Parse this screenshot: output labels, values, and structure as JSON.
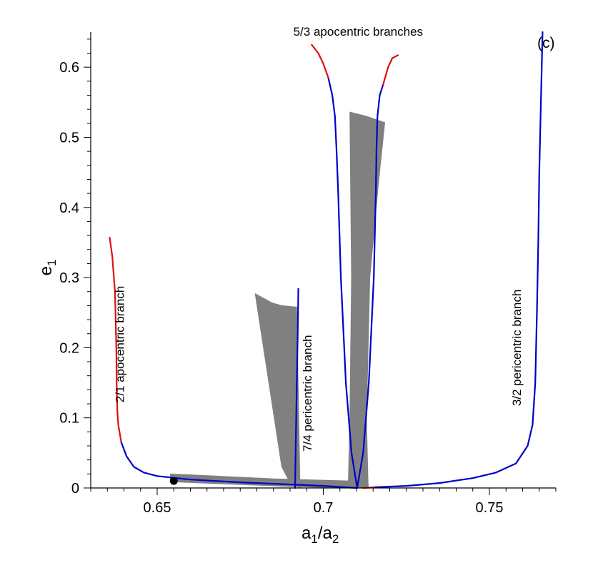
{
  "chart_data": {
    "type": "line",
    "xlabel_main": "a",
    "xlabel_sub1": "1",
    "xlabel_slash": "/a",
    "xlabel_sub2": "2",
    "ylabel_main": "e",
    "ylabel_sub": "1",
    "panel_label": "(c)",
    "xlim": [
      0.63,
      0.77
    ],
    "ylim": [
      0,
      0.65
    ],
    "x_ticks": [
      {
        "value": 0.65,
        "label": "0.65"
      },
      {
        "value": 0.7,
        "label": "0.7"
      },
      {
        "value": 0.75,
        "label": "0.75"
      }
    ],
    "y_ticks": [
      {
        "value": 0,
        "label": "0"
      },
      {
        "value": 0.1,
        "label": "0.1"
      },
      {
        "value": 0.2,
        "label": "0.2"
      },
      {
        "value": 0.3,
        "label": "0.3"
      },
      {
        "value": 0.4,
        "label": "0.4"
      },
      {
        "value": 0.5,
        "label": "0.5"
      },
      {
        "value": 0.6,
        "label": "0.6"
      }
    ],
    "colors": {
      "stable": "#0000cc",
      "unstable": "#dd1111",
      "region": "#808080",
      "point": "#000000"
    },
    "regions": [
      {
        "name": "low-e region",
        "points": [
          [
            0.654,
            0.02
          ],
          [
            0.685,
            0.013
          ],
          [
            0.7085,
            0.01
          ],
          [
            0.7135,
            0.006
          ],
          [
            0.7135,
            0.0
          ],
          [
            0.708,
            0.0
          ],
          [
            0.69,
            0.002
          ],
          [
            0.654,
            0.009
          ]
        ]
      },
      {
        "name": "7/4 region",
        "points": [
          [
            0.6795,
            0.277
          ],
          [
            0.6845,
            0.264
          ],
          [
            0.6875,
            0.26
          ],
          [
            0.692,
            0.258
          ],
          [
            0.693,
            0.0
          ],
          [
            0.6895,
            0.012
          ],
          [
            0.6875,
            0.03
          ]
        ]
      },
      {
        "name": "5/3 region",
        "points": [
          [
            0.708,
            0.536
          ],
          [
            0.713,
            0.53
          ],
          [
            0.7185,
            0.521
          ],
          [
            0.7165,
            0.43
          ],
          [
            0.714,
            0.3
          ],
          [
            0.713,
            0.1
          ],
          [
            0.7135,
            0.0
          ],
          [
            0.7075,
            0.0
          ],
          [
            0.708,
            0.1
          ],
          [
            0.7085,
            0.3
          ]
        ]
      }
    ],
    "curves": [
      {
        "name": "2/1 apocentric branch",
        "label": "2/1 apocentric branch",
        "segments": [
          {
            "color": "unstable",
            "points": [
              [
                0.6357,
                0.357
              ],
              [
                0.6365,
                0.33
              ],
              [
                0.6373,
                0.28
              ],
              [
                0.6375,
                0.24
              ],
              [
                0.6377,
                0.2
              ],
              [
                0.6378,
                0.15
              ],
              [
                0.638,
                0.11
              ],
              [
                0.6383,
                0.09
              ],
              [
                0.6392,
                0.065
              ]
            ]
          },
          {
            "color": "stable",
            "points": [
              [
                0.6392,
                0.065
              ],
              [
                0.6408,
                0.045
              ],
              [
                0.643,
                0.03
              ],
              [
                0.646,
                0.022
              ],
              [
                0.65,
                0.017
              ],
              [
                0.66,
                0.012
              ],
              [
                0.675,
                0.008
              ],
              [
                0.69,
                0.005
              ],
              [
                0.7,
                0.003
              ],
              [
                0.71,
                0.0
              ]
            ]
          }
        ]
      },
      {
        "name": "7/4 pericentric branch",
        "label": "7/4 pericentric branch",
        "segments": [
          {
            "color": "stable",
            "points": [
              [
                0.6915,
                0.0
              ],
              [
                0.6917,
                0.06
              ],
              [
                0.692,
                0.14
              ],
              [
                0.6923,
                0.22
              ],
              [
                0.6925,
                0.284
              ]
            ]
          }
        ]
      },
      {
        "name": "5/3 apocentric left",
        "label": "",
        "segments": [
          {
            "color": "stable",
            "points": [
              [
                0.7102,
                0.0
              ],
              [
                0.7085,
                0.05
              ],
              [
                0.7068,
                0.15
              ],
              [
                0.7053,
                0.3
              ],
              [
                0.7045,
                0.42
              ],
              [
                0.704,
                0.48
              ],
              [
                0.7035,
                0.53
              ],
              [
                0.7027,
                0.56
              ],
              [
                0.7015,
                0.585
              ]
            ]
          },
          {
            "color": "unstable",
            "points": [
              [
                0.7015,
                0.585
              ],
              [
                0.7,
                0.605
              ],
              [
                0.6985,
                0.62
              ],
              [
                0.6965,
                0.632
              ]
            ]
          }
        ]
      },
      {
        "name": "5/3 apocentric right",
        "label": "",
        "segments": [
          {
            "color": "stable",
            "points": [
              [
                0.7102,
                0.0
              ],
              [
                0.712,
                0.05
              ],
              [
                0.7137,
                0.15
              ],
              [
                0.7152,
                0.3
              ],
              [
                0.7158,
                0.42
              ],
              [
                0.716,
                0.48
              ],
              [
                0.7163,
                0.53
              ],
              [
                0.717,
                0.56
              ],
              [
                0.718,
                0.575
              ]
            ]
          },
          {
            "color": "unstable",
            "points": [
              [
                0.718,
                0.575
              ],
              [
                0.7195,
                0.6
              ],
              [
                0.7208,
                0.613
              ],
              [
                0.7225,
                0.617
              ]
            ]
          }
        ]
      },
      {
        "name": "3/2 pericentric branch",
        "label": "3/2 pericentric branch",
        "segments": [
          {
            "color": "unstable",
            "points": [
              [
                0.712,
                0.0
              ],
              [
                0.7155,
                0.001
              ]
            ]
          },
          {
            "color": "stable",
            "points": [
              [
                0.7155,
                0.001
              ],
              [
                0.725,
                0.003
              ],
              [
                0.735,
                0.007
              ],
              [
                0.745,
                0.014
              ],
              [
                0.752,
                0.022
              ],
              [
                0.758,
                0.035
              ],
              [
                0.7615,
                0.06
              ],
              [
                0.763,
                0.09
              ],
              [
                0.7638,
                0.15
              ],
              [
                0.7643,
                0.25
              ],
              [
                0.7647,
                0.35
              ],
              [
                0.765,
                0.45
              ],
              [
                0.7655,
                0.55
              ],
              [
                0.766,
                0.65
              ]
            ]
          }
        ]
      }
    ],
    "curve_labels": [
      {
        "text": "2/1 apocentric branch",
        "x": 0.64,
        "y": 0.205,
        "rotate": -90
      },
      {
        "text": "7/4 pericentric branch",
        "x": 0.6965,
        "y": 0.135,
        "rotate": -90
      },
      {
        "text": "5/3 apocentric branches",
        "x": 0.7105,
        "y": 0.645,
        "rotate": 0
      },
      {
        "text": "3/2 pericentric branch",
        "x": 0.7595,
        "y": 0.2,
        "rotate": -90
      }
    ],
    "point": {
      "x": 0.655,
      "y": 0.01
    }
  }
}
